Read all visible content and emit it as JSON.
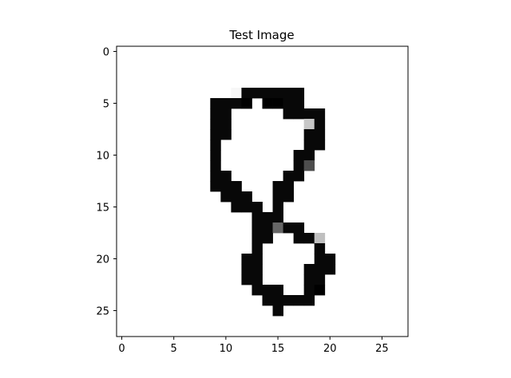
{
  "chart_data": {
    "type": "heatmap",
    "title": "Test Image",
    "xlabel": "",
    "ylabel": "",
    "colormap": "gray_r",
    "rows": 28,
    "cols": 28,
    "xlim": [
      -0.5,
      27.5
    ],
    "ylim": [
      27.5,
      -0.5
    ],
    "xticks": [
      0,
      5,
      10,
      15,
      20,
      25
    ],
    "yticks": [
      0,
      5,
      10,
      15,
      20,
      25
    ],
    "grid": false,
    "pixels": [
      [
        4,
        11,
        0.03
      ],
      [
        4,
        12,
        0.97
      ],
      [
        4,
        13,
        0.97
      ],
      [
        4,
        14,
        0.97
      ],
      [
        4,
        15,
        0.97
      ],
      [
        4,
        16,
        0.97
      ],
      [
        4,
        17,
        0.97
      ],
      [
        5,
        9,
        0.97
      ],
      [
        5,
        10,
        0.97
      ],
      [
        5,
        11,
        0.97
      ],
      [
        5,
        12,
        1.0
      ],
      [
        5,
        14,
        1.0
      ],
      [
        5,
        15,
        1.0
      ],
      [
        5,
        16,
        0.97
      ],
      [
        5,
        17,
        0.97
      ],
      [
        6,
        9,
        0.97
      ],
      [
        6,
        10,
        0.97
      ],
      [
        6,
        16,
        0.97
      ],
      [
        6,
        17,
        0.97
      ],
      [
        6,
        18,
        0.97
      ],
      [
        6,
        19,
        0.97
      ],
      [
        7,
        9,
        0.97
      ],
      [
        7,
        10,
        0.97
      ],
      [
        7,
        18,
        0.22
      ],
      [
        7,
        19,
        0.97
      ],
      [
        8,
        9,
        0.97
      ],
      [
        8,
        10,
        0.97
      ],
      [
        8,
        18,
        0.97
      ],
      [
        8,
        19,
        0.97
      ],
      [
        9,
        9,
        0.97
      ],
      [
        9,
        18,
        0.97
      ],
      [
        9,
        19,
        0.97
      ],
      [
        10,
        9,
        0.97
      ],
      [
        10,
        17,
        0.97
      ],
      [
        10,
        18,
        0.97
      ],
      [
        11,
        9,
        0.97
      ],
      [
        11,
        17,
        0.97
      ],
      [
        11,
        18,
        0.7
      ],
      [
        12,
        9,
        0.97
      ],
      [
        12,
        10,
        0.97
      ],
      [
        12,
        16,
        0.97
      ],
      [
        12,
        17,
        0.97
      ],
      [
        13,
        9,
        0.97
      ],
      [
        13,
        10,
        0.97
      ],
      [
        13,
        11,
        0.97
      ],
      [
        13,
        15,
        0.97
      ],
      [
        13,
        16,
        0.97
      ],
      [
        14,
        10,
        0.97
      ],
      [
        14,
        11,
        0.97
      ],
      [
        14,
        12,
        0.97
      ],
      [
        14,
        15,
        0.97
      ],
      [
        14,
        16,
        0.97
      ],
      [
        15,
        11,
        0.97
      ],
      [
        15,
        12,
        0.97
      ],
      [
        15,
        13,
        0.97
      ],
      [
        15,
        15,
        0.97
      ],
      [
        16,
        13,
        0.97
      ],
      [
        16,
        14,
        0.97
      ],
      [
        16,
        15,
        0.97
      ],
      [
        17,
        13,
        0.97
      ],
      [
        17,
        14,
        0.97
      ],
      [
        17,
        15,
        0.6
      ],
      [
        17,
        16,
        0.97
      ],
      [
        17,
        17,
        0.97
      ],
      [
        18,
        13,
        0.97
      ],
      [
        18,
        14,
        0.97
      ],
      [
        18,
        17,
        0.97
      ],
      [
        18,
        18,
        0.97
      ],
      [
        18,
        19,
        0.25
      ],
      [
        19,
        13,
        0.97
      ],
      [
        19,
        19,
        0.97
      ],
      [
        20,
        12,
        0.97
      ],
      [
        20,
        13,
        0.97
      ],
      [
        20,
        19,
        0.97
      ],
      [
        20,
        20,
        0.97
      ],
      [
        21,
        12,
        0.97
      ],
      [
        21,
        13,
        0.97
      ],
      [
        21,
        18,
        0.97
      ],
      [
        21,
        19,
        0.97
      ],
      [
        21,
        20,
        0.97
      ],
      [
        22,
        12,
        0.97
      ],
      [
        22,
        13,
        0.97
      ],
      [
        22,
        18,
        0.97
      ],
      [
        22,
        19,
        0.97
      ],
      [
        23,
        13,
        0.97
      ],
      [
        23,
        14,
        0.97
      ],
      [
        23,
        15,
        0.97
      ],
      [
        23,
        18,
        0.97
      ],
      [
        23,
        19,
        1.0
      ],
      [
        24,
        14,
        0.97
      ],
      [
        24,
        15,
        0.97
      ],
      [
        24,
        16,
        0.97
      ],
      [
        24,
        17,
        0.97
      ],
      [
        24,
        18,
        0.97
      ],
      [
        25,
        15,
        0.97
      ]
    ]
  }
}
